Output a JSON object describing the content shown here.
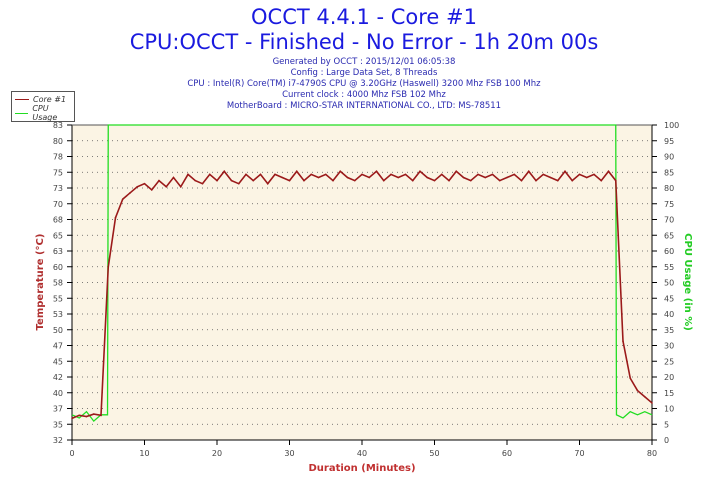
{
  "header": {
    "title": "OCCT 4.4.1 - Core #1",
    "subtitle": "CPU:OCCT - Finished - No Error - 1h 20m 00s",
    "info": [
      "Generated by OCCT : 2015/12/01 06:05:38",
      "Config : Large Data Set, 8 Threads",
      "CPU : Intel(R) Core(TM) i7-4790S CPU @ 3.20GHz (Haswell) 3200 Mhz FSB 100 Mhz",
      "Current clock : 4000 Mhz FSB 102 Mhz",
      "MotherBoard : MICRO-STAR INTERNATIONAL CO., LTD: MS-78511"
    ]
  },
  "chart_data": {
    "type": "line",
    "title": "OCCT 4.4.1 - Core #1",
    "xlabel": "Duration (Minutes)",
    "ylabel": "Temperature (°C)",
    "y2label": "CPU Usage (in %)",
    "xlim": [
      0,
      80
    ],
    "ylim": [
      32,
      83
    ],
    "y2lim": [
      0,
      100
    ],
    "xticks": [
      "0",
      "10",
      "20",
      "30",
      "40",
      "50",
      "60",
      "70",
      "80"
    ],
    "yticks": [
      "32",
      "35",
      "37",
      "40",
      "42",
      "45",
      "47",
      "50",
      "53",
      "55",
      "58",
      "60",
      "63",
      "65",
      "68",
      "70",
      "73",
      "75",
      "78",
      "80",
      "83"
    ],
    "y2ticks": [
      "0",
      "5",
      "10",
      "15",
      "20",
      "25",
      "30",
      "35",
      "40",
      "45",
      "50",
      "55",
      "60",
      "65",
      "70",
      "75",
      "80",
      "85",
      "90",
      "95",
      "100"
    ],
    "grid": true,
    "legend_position": "top-left",
    "colors": {
      "temp": "#9b1a1a",
      "cpu": "#22dd22",
      "bg": "#fbf4e4"
    },
    "series": [
      {
        "name": "Core #1",
        "axis": "left",
        "x": [
          0,
          1,
          2,
          3,
          4,
          5,
          6,
          7,
          8,
          9,
          10,
          11,
          12,
          13,
          14,
          15,
          16,
          17,
          18,
          19,
          20,
          21,
          22,
          23,
          24,
          25,
          26,
          27,
          28,
          29,
          30,
          31,
          32,
          33,
          34,
          35,
          36,
          37,
          38,
          39,
          40,
          41,
          42,
          43,
          44,
          45,
          46,
          47,
          48,
          49,
          50,
          51,
          52,
          53,
          54,
          55,
          56,
          57,
          58,
          59,
          60,
          61,
          62,
          63,
          64,
          65,
          66,
          67,
          68,
          69,
          70,
          71,
          72,
          73,
          74,
          75,
          76,
          77,
          78,
          79,
          80
        ],
        "values": [
          35.5,
          36,
          35.8,
          36.2,
          36,
          60,
          68,
          71,
          72,
          73,
          73.5,
          72.5,
          74,
          73,
          74.5,
          73,
          75,
          74,
          73.5,
          75,
          74,
          75.5,
          74,
          73.5,
          75,
          74,
          75,
          73.5,
          75,
          74.5,
          74,
          75.5,
          74,
          75,
          74.5,
          75,
          74,
          75.5,
          74.5,
          74,
          75,
          74.5,
          75.5,
          74,
          75,
          74.5,
          75,
          74,
          75.5,
          74.5,
          74,
          75,
          74,
          75.5,
          74.5,
          74,
          75,
          74.5,
          75,
          74,
          74.5,
          75,
          74,
          75.5,
          74,
          75,
          74.5,
          74,
          75.5,
          74,
          75,
          74.5,
          75,
          74,
          75.5,
          74,
          48,
          42,
          40,
          39,
          38
        ]
      },
      {
        "name": "CPU Usage",
        "axis": "right",
        "x": [
          0,
          1,
          2,
          3,
          4,
          4.9,
          5,
          75,
          75.1,
          76,
          77,
          78,
          79,
          80
        ],
        "values": [
          8,
          7,
          9,
          6,
          8,
          8,
          100,
          100,
          8,
          7,
          9,
          8,
          9,
          8
        ]
      }
    ]
  }
}
